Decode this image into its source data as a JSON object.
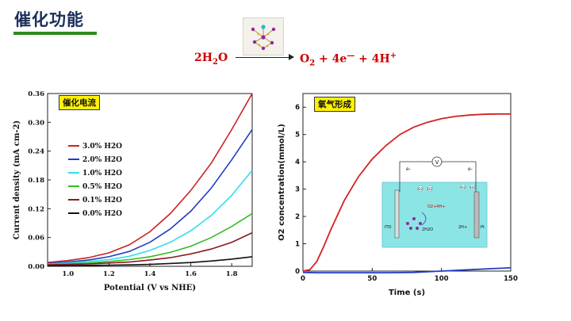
{
  "header": {
    "title": "催化功能"
  },
  "equation": {
    "left": "2H",
    "left_sub": "2",
    "left_tail": "O",
    "right_a": "O",
    "right_a_sub": "2",
    "right_b": " + 4e",
    "right_b_sup": "—",
    "right_c": " + 4H",
    "right_c_sup": "+"
  },
  "colors": {
    "title": "#1a2f5a",
    "accent_bar": "#2e8b1e",
    "equation": "#cc0000",
    "tag_bg": "#fff200"
  },
  "icons": [
    "molecule-structure-icon",
    "electrochemical-cell-icon"
  ],
  "chart_data": [
    {
      "type": "line",
      "panel_tag": "催化电流",
      "xlabel": "Potential (V vs NHE)",
      "ylabel": "Current density (mA cm-2)",
      "xlim": [
        0.9,
        1.9
      ],
      "ylim": [
        0.0,
        0.36
      ],
      "xticks": [
        "1.0",
        "1.2",
        "1.4",
        "1.6",
        "1.8"
      ],
      "yticks": [
        "0.00",
        "0.06",
        "0.12",
        "0.18",
        "0.24",
        "0.30",
        "0.36"
      ],
      "grid": false,
      "legend_position": "left",
      "series": [
        {
          "name": "3.0% H2O",
          "color": "#cc2222",
          "x": [
            0.9,
            1.0,
            1.1,
            1.2,
            1.3,
            1.4,
            1.5,
            1.6,
            1.7,
            1.8,
            1.9
          ],
          "y": [
            0.008,
            0.012,
            0.018,
            0.028,
            0.045,
            0.072,
            0.11,
            0.158,
            0.215,
            0.285,
            0.36
          ]
        },
        {
          "name": "2.0% H2O",
          "color": "#1f3ec0",
          "x": [
            0.9,
            1.0,
            1.1,
            1.2,
            1.3,
            1.4,
            1.5,
            1.6,
            1.7,
            1.8,
            1.9
          ],
          "y": [
            0.006,
            0.009,
            0.013,
            0.02,
            0.031,
            0.05,
            0.078,
            0.115,
            0.163,
            0.222,
            0.285
          ]
        },
        {
          "name": "1.0% H2O",
          "color": "#33ddee",
          "x": [
            0.9,
            1.0,
            1.1,
            1.2,
            1.3,
            1.4,
            1.5,
            1.6,
            1.7,
            1.8,
            1.9
          ],
          "y": [
            0.005,
            0.007,
            0.01,
            0.014,
            0.021,
            0.033,
            0.05,
            0.074,
            0.106,
            0.148,
            0.2
          ]
        },
        {
          "name": "0.5% H2O",
          "color": "#33bb22",
          "x": [
            0.9,
            1.0,
            1.1,
            1.2,
            1.3,
            1.4,
            1.5,
            1.6,
            1.7,
            1.8,
            1.9
          ],
          "y": [
            0.004,
            0.005,
            0.007,
            0.01,
            0.014,
            0.02,
            0.029,
            0.042,
            0.06,
            0.083,
            0.11
          ]
        },
        {
          "name": "0.1% H2O",
          "color": "#8b1a1a",
          "x": [
            0.9,
            1.0,
            1.1,
            1.2,
            1.3,
            1.4,
            1.5,
            1.6,
            1.7,
            1.8,
            1.9
          ],
          "y": [
            0.003,
            0.004,
            0.005,
            0.007,
            0.009,
            0.013,
            0.018,
            0.026,
            0.036,
            0.05,
            0.07
          ]
        },
        {
          "name": "0.0% H2O",
          "color": "#111111",
          "x": [
            0.9,
            1.0,
            1.1,
            1.2,
            1.3,
            1.4,
            1.5,
            1.6,
            1.7,
            1.8,
            1.9
          ],
          "y": [
            0.001,
            0.0015,
            0.002,
            0.0025,
            0.003,
            0.004,
            0.006,
            0.008,
            0.011,
            0.015,
            0.02
          ]
        }
      ]
    },
    {
      "type": "line",
      "panel_tag": "氧气形成",
      "xlabel": "Time (s)",
      "ylabel": "O2 concentration(mmol/L)",
      "xlim": [
        0,
        150
      ],
      "ylim": [
        0,
        6.5
      ],
      "xticks": [
        "0",
        "50",
        "100",
        "150"
      ],
      "yticks": [
        "0",
        "1",
        "2",
        "3",
        "4",
        "5",
        "6"
      ],
      "grid": false,
      "series": [
        {
          "color": "#d62020",
          "x": [
            0,
            5,
            10,
            15,
            20,
            30,
            40,
            50,
            60,
            70,
            80,
            90,
            100,
            110,
            120,
            130,
            140,
            150
          ],
          "y": [
            0,
            0.05,
            0.35,
            0.9,
            1.5,
            2.6,
            3.45,
            4.1,
            4.6,
            5.0,
            5.27,
            5.45,
            5.58,
            5.66,
            5.71,
            5.74,
            5.75,
            5.75
          ]
        },
        {
          "color": "#1f3ec0",
          "x": [
            0,
            10,
            20,
            40,
            60,
            80,
            100,
            120,
            140,
            150
          ],
          "y": [
            -0.05,
            -0.06,
            -0.06,
            -0.06,
            -0.06,
            -0.05,
            0.0,
            0.05,
            0.1,
            0.12
          ]
        }
      ],
      "inset": {
        "labels": [
          "V",
          "e-",
          "e-",
          "O2",
          "O2",
          "H2",
          "H2",
          "O2+4H+",
          "2H2O",
          "2H+",
          "ITO",
          "Pt"
        ]
      }
    }
  ]
}
